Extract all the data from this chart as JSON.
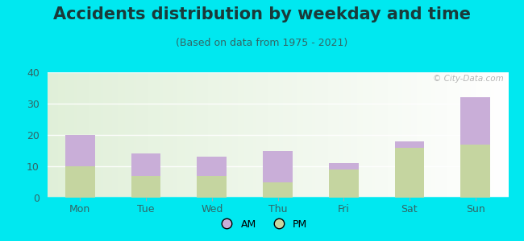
{
  "title": "Accidents distribution by weekday and time",
  "subtitle": "(Based on data from 1975 - 2021)",
  "categories": [
    "Mon",
    "Tue",
    "Wed",
    "Thu",
    "Fri",
    "Sat",
    "Sun"
  ],
  "pm_values": [
    10,
    7,
    7,
    5,
    9,
    16,
    17
  ],
  "am_values": [
    10,
    7,
    6,
    10,
    2,
    2,
    15
  ],
  "am_color": "#c9aed8",
  "pm_color": "#c5d5a0",
  "background_fig": "#00e8f0",
  "ylim": [
    0,
    40
  ],
  "yticks": [
    0,
    10,
    20,
    30,
    40
  ],
  "legend_am": "AM",
  "legend_pm": "PM",
  "watermark": "© City-Data.com",
  "title_fontsize": 15,
  "subtitle_fontsize": 9,
  "title_color": "#1a3a3a",
  "subtitle_color": "#336666",
  "tick_label_color": "#336666",
  "bar_width": 0.45
}
